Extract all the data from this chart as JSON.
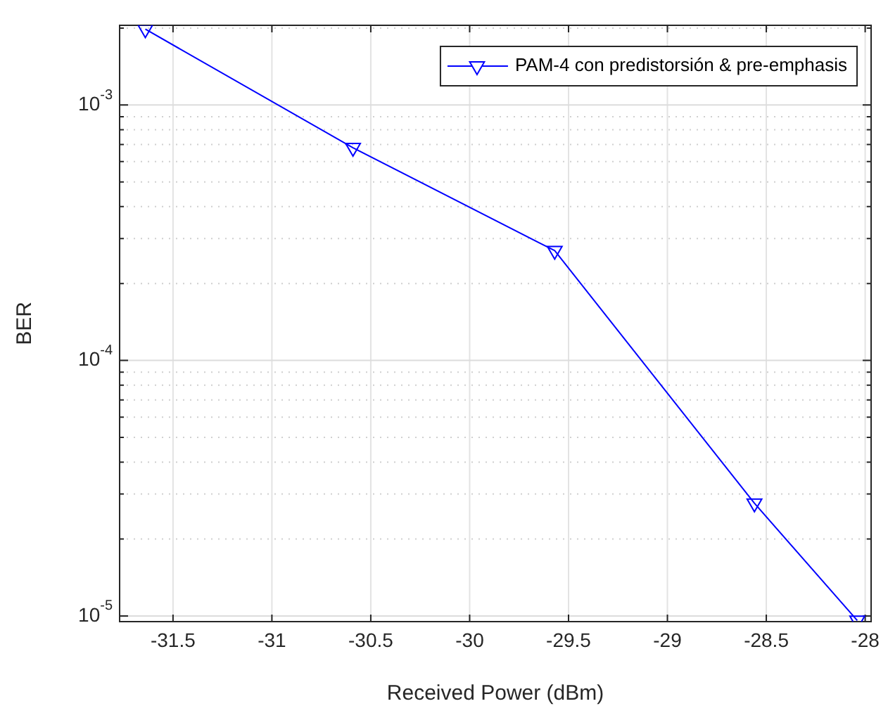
{
  "chart_data": {
    "type": "line",
    "xlabel": "Received Power (dBm)",
    "ylabel": "BER",
    "log": "y",
    "grid": true,
    "legend": "top right",
    "marker": "triangle",
    "line_style": "solid",
    "xlim": [
      -31.77,
      -27.97
    ],
    "xticks": [
      -31.5,
      -31,
      -30.5,
      -30,
      -29.5,
      -29,
      -28.5,
      -28
    ],
    "ylim": [
      9.5e-06,
      0.00205
    ],
    "yticks": [
      {
        "value": 1e-05,
        "label": "10$^{-5}$"
      },
      {
        "value": 2e-05,
        "label": null
      },
      {
        "value": 3e-05,
        "label": null
      },
      {
        "value": 4e-05,
        "label": null
      },
      {
        "value": 5e-05,
        "label": null
      },
      {
        "value": 6e-05,
        "label": null
      },
      {
        "value": 7e-05,
        "label": null
      },
      {
        "value": 8e-05,
        "label": null
      },
      {
        "value": 9e-05,
        "label": null
      },
      {
        "value": 0.0001,
        "label": "10$^{-4}$"
      },
      {
        "value": 0.0002,
        "label": null
      },
      {
        "value": 0.0003,
        "label": null
      },
      {
        "value": 0.0004,
        "label": null
      },
      {
        "value": 0.0005,
        "label": null
      },
      {
        "value": 0.0006,
        "label": null
      },
      {
        "value": 0.0007,
        "label": null
      },
      {
        "value": 0.0008,
        "label": null
      },
      {
        "value": 0.0009,
        "label": null
      },
      {
        "value": 0.001,
        "label": "10$^{-3}$"
      },
      {
        "value": 0.002,
        "label": null
      }
    ],
    "x": [
      -31.64,
      -30.59,
      -29.57,
      -28.56,
      -28.04
    ],
    "series": [
      {
        "name": "PAM-4 con predistorsión & pre-emphasis",
        "color": "#0000ff",
        "values": [
          0.00198,
          0.00068,
          0.000269,
          2.76e-05,
          9.6e-06
        ]
      }
    ]
  }
}
